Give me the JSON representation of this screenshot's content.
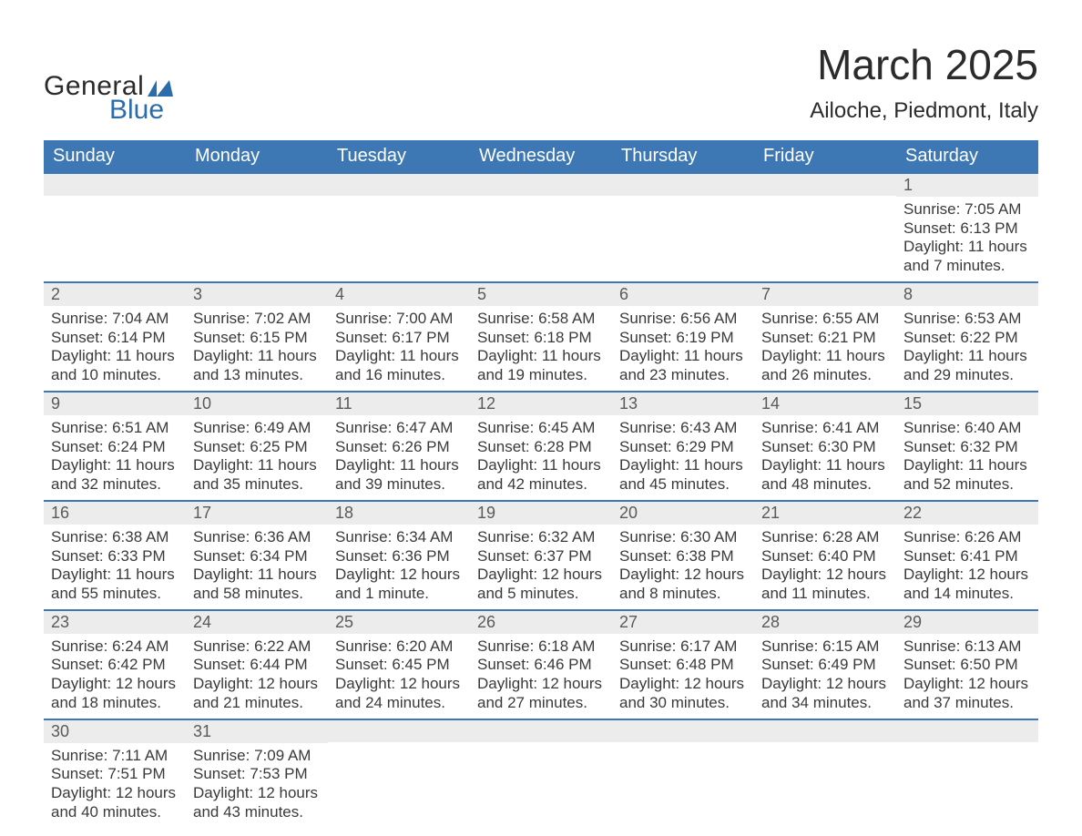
{
  "colors": {
    "header_blue": "#3d78b4",
    "row_separator": "#3d78b4",
    "daynum_bg": "#ececec",
    "text": "#3a3a3a",
    "daynum_text": "#5a5a5a",
    "logo_blue": "#2a6daa",
    "logo_dark": "#2b2b2b",
    "title": "#2b2b2b",
    "background": "#ffffff"
  },
  "logo": {
    "line1": "General",
    "line2": "Blue"
  },
  "title": "March 2025",
  "location": "Ailoche, Piedmont, Italy",
  "weekdays": [
    "Sunday",
    "Monday",
    "Tuesday",
    "Wednesday",
    "Thursday",
    "Friday",
    "Saturday"
  ],
  "weeks": [
    [
      null,
      null,
      null,
      null,
      null,
      null,
      {
        "n": "1",
        "sunrise": "Sunrise: 7:05 AM",
        "sunset": "Sunset: 6:13 PM",
        "daylight": "Daylight: 11 hours and 7 minutes."
      }
    ],
    [
      {
        "n": "2",
        "sunrise": "Sunrise: 7:04 AM",
        "sunset": "Sunset: 6:14 PM",
        "daylight": "Daylight: 11 hours and 10 minutes."
      },
      {
        "n": "3",
        "sunrise": "Sunrise: 7:02 AM",
        "sunset": "Sunset: 6:15 PM",
        "daylight": "Daylight: 11 hours and 13 minutes."
      },
      {
        "n": "4",
        "sunrise": "Sunrise: 7:00 AM",
        "sunset": "Sunset: 6:17 PM",
        "daylight": "Daylight: 11 hours and 16 minutes."
      },
      {
        "n": "5",
        "sunrise": "Sunrise: 6:58 AM",
        "sunset": "Sunset: 6:18 PM",
        "daylight": "Daylight: 11 hours and 19 minutes."
      },
      {
        "n": "6",
        "sunrise": "Sunrise: 6:56 AM",
        "sunset": "Sunset: 6:19 PM",
        "daylight": "Daylight: 11 hours and 23 minutes."
      },
      {
        "n": "7",
        "sunrise": "Sunrise: 6:55 AM",
        "sunset": "Sunset: 6:21 PM",
        "daylight": "Daylight: 11 hours and 26 minutes."
      },
      {
        "n": "8",
        "sunrise": "Sunrise: 6:53 AM",
        "sunset": "Sunset: 6:22 PM",
        "daylight": "Daylight: 11 hours and 29 minutes."
      }
    ],
    [
      {
        "n": "9",
        "sunrise": "Sunrise: 6:51 AM",
        "sunset": "Sunset: 6:24 PM",
        "daylight": "Daylight: 11 hours and 32 minutes."
      },
      {
        "n": "10",
        "sunrise": "Sunrise: 6:49 AM",
        "sunset": "Sunset: 6:25 PM",
        "daylight": "Daylight: 11 hours and 35 minutes."
      },
      {
        "n": "11",
        "sunrise": "Sunrise: 6:47 AM",
        "sunset": "Sunset: 6:26 PM",
        "daylight": "Daylight: 11 hours and 39 minutes."
      },
      {
        "n": "12",
        "sunrise": "Sunrise: 6:45 AM",
        "sunset": "Sunset: 6:28 PM",
        "daylight": "Daylight: 11 hours and 42 minutes."
      },
      {
        "n": "13",
        "sunrise": "Sunrise: 6:43 AM",
        "sunset": "Sunset: 6:29 PM",
        "daylight": "Daylight: 11 hours and 45 minutes."
      },
      {
        "n": "14",
        "sunrise": "Sunrise: 6:41 AM",
        "sunset": "Sunset: 6:30 PM",
        "daylight": "Daylight: 11 hours and 48 minutes."
      },
      {
        "n": "15",
        "sunrise": "Sunrise: 6:40 AM",
        "sunset": "Sunset: 6:32 PM",
        "daylight": "Daylight: 11 hours and 52 minutes."
      }
    ],
    [
      {
        "n": "16",
        "sunrise": "Sunrise: 6:38 AM",
        "sunset": "Sunset: 6:33 PM",
        "daylight": "Daylight: 11 hours and 55 minutes."
      },
      {
        "n": "17",
        "sunrise": "Sunrise: 6:36 AM",
        "sunset": "Sunset: 6:34 PM",
        "daylight": "Daylight: 11 hours and 58 minutes."
      },
      {
        "n": "18",
        "sunrise": "Sunrise: 6:34 AM",
        "sunset": "Sunset: 6:36 PM",
        "daylight": "Daylight: 12 hours and 1 minute."
      },
      {
        "n": "19",
        "sunrise": "Sunrise: 6:32 AM",
        "sunset": "Sunset: 6:37 PM",
        "daylight": "Daylight: 12 hours and 5 minutes."
      },
      {
        "n": "20",
        "sunrise": "Sunrise: 6:30 AM",
        "sunset": "Sunset: 6:38 PM",
        "daylight": "Daylight: 12 hours and 8 minutes."
      },
      {
        "n": "21",
        "sunrise": "Sunrise: 6:28 AM",
        "sunset": "Sunset: 6:40 PM",
        "daylight": "Daylight: 12 hours and 11 minutes."
      },
      {
        "n": "22",
        "sunrise": "Sunrise: 6:26 AM",
        "sunset": "Sunset: 6:41 PM",
        "daylight": "Daylight: 12 hours and 14 minutes."
      }
    ],
    [
      {
        "n": "23",
        "sunrise": "Sunrise: 6:24 AM",
        "sunset": "Sunset: 6:42 PM",
        "daylight": "Daylight: 12 hours and 18 minutes."
      },
      {
        "n": "24",
        "sunrise": "Sunrise: 6:22 AM",
        "sunset": "Sunset: 6:44 PM",
        "daylight": "Daylight: 12 hours and 21 minutes."
      },
      {
        "n": "25",
        "sunrise": "Sunrise: 6:20 AM",
        "sunset": "Sunset: 6:45 PM",
        "daylight": "Daylight: 12 hours and 24 minutes."
      },
      {
        "n": "26",
        "sunrise": "Sunrise: 6:18 AM",
        "sunset": "Sunset: 6:46 PM",
        "daylight": "Daylight: 12 hours and 27 minutes."
      },
      {
        "n": "27",
        "sunrise": "Sunrise: 6:17 AM",
        "sunset": "Sunset: 6:48 PM",
        "daylight": "Daylight: 12 hours and 30 minutes."
      },
      {
        "n": "28",
        "sunrise": "Sunrise: 6:15 AM",
        "sunset": "Sunset: 6:49 PM",
        "daylight": "Daylight: 12 hours and 34 minutes."
      },
      {
        "n": "29",
        "sunrise": "Sunrise: 6:13 AM",
        "sunset": "Sunset: 6:50 PM",
        "daylight": "Daylight: 12 hours and 37 minutes."
      }
    ],
    [
      {
        "n": "30",
        "sunrise": "Sunrise: 7:11 AM",
        "sunset": "Sunset: 7:51 PM",
        "daylight": "Daylight: 12 hours and 40 minutes."
      },
      {
        "n": "31",
        "sunrise": "Sunrise: 7:09 AM",
        "sunset": "Sunset: 7:53 PM",
        "daylight": "Daylight: 12 hours and 43 minutes."
      },
      null,
      null,
      null,
      null,
      null
    ]
  ]
}
